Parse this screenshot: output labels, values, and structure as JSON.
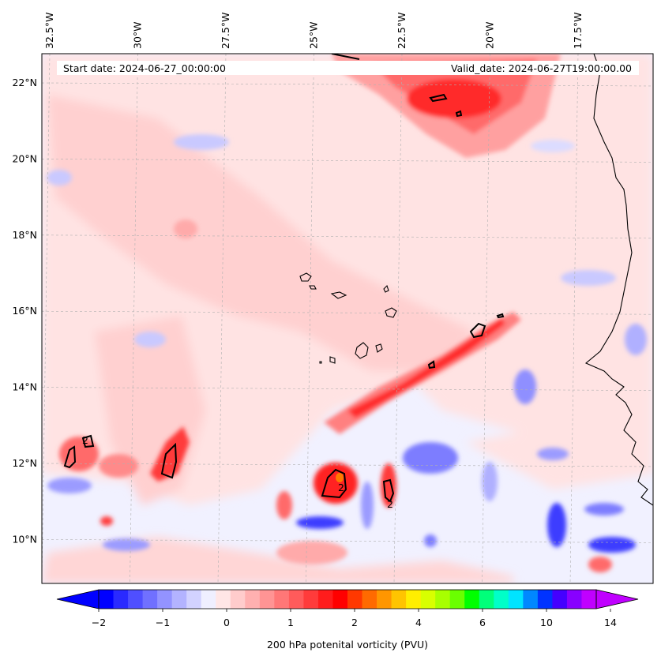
{
  "header": {
    "start_label": "Start date: 2024-06-27_00:00:00",
    "valid_label": "Valid_date: 2024-06-27T19:00:00.00"
  },
  "axes": {
    "lon_ticks": [
      {
        "value": -32.5,
        "label": "32.5°W"
      },
      {
        "value": -30.0,
        "label": "30°W"
      },
      {
        "value": -27.5,
        "label": "27.5°W"
      },
      {
        "value": -25.0,
        "label": "25°W"
      },
      {
        "value": -22.5,
        "label": "22.5°W"
      },
      {
        "value": -20.0,
        "label": "20°W"
      },
      {
        "value": -17.5,
        "label": "17.5°W"
      }
    ],
    "lat_ticks": [
      {
        "value": 22,
        "label": "22°N"
      },
      {
        "value": 20,
        "label": "20°N"
      },
      {
        "value": 18,
        "label": "18°N"
      },
      {
        "value": 16,
        "label": "16°N"
      },
      {
        "value": 14,
        "label": "14°N"
      },
      {
        "value": 12,
        "label": "12°N"
      },
      {
        "value": 10,
        "label": "10°N"
      }
    ],
    "gridlines": true
  },
  "map": {
    "field": "200 hPa potential vorticity",
    "contour_level": 2,
    "contour_labels": [
      "2",
      "2",
      "2"
    ]
  },
  "colorbar": {
    "label": "200 hPa potenital vorticity (PVU)",
    "tick_labels": [
      "-2",
      "-1",
      "0",
      "1",
      "2",
      "4",
      "6",
      "10",
      "14"
    ],
    "colors": [
      "#0000ff",
      "#2a2aff",
      "#4f4fff",
      "#7070ff",
      "#9393ff",
      "#b3b3ff",
      "#d2d2ff",
      "#efefff",
      "#ffe6e6",
      "#ffcccc",
      "#ffb0b0",
      "#ff9494",
      "#ff7777",
      "#ff5b5b",
      "#ff3b3b",
      "#ff1c1c",
      "#ff0000",
      "#ff3800",
      "#ff6a00",
      "#ff9600",
      "#ffc400",
      "#ffee00",
      "#d8ff00",
      "#a8ff00",
      "#6aff00",
      "#00ff00",
      "#00ff7a",
      "#00ffc8",
      "#00e4ff",
      "#0088ff",
      "#0033ff",
      "#4400ff",
      "#8800ff",
      "#c000ff"
    ],
    "extend": "both"
  }
}
